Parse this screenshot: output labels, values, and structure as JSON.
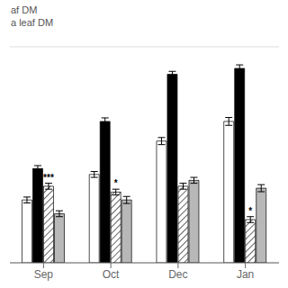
{
  "chart_data": {
    "type": "bar",
    "categories": [
      "Sep",
      "Oct",
      "Dec",
      "Jan"
    ],
    "series": [
      {
        "color": "#ffffff",
        "values": [
          3.2,
          4.5,
          6.2,
          7.2
        ],
        "errors": [
          0.15,
          0.15,
          0.18,
          0.2
        ]
      },
      {
        "color": "#000000",
        "values": [
          4.8,
          7.2,
          9.6,
          9.9
        ],
        "errors": [
          0.15,
          0.18,
          0.15,
          0.18
        ]
      },
      {
        "color": "#ffffff",
        "values": [
          3.9,
          3.6,
          3.9,
          2.2
        ],
        "errors": [
          0.15,
          0.15,
          0.15,
          0.15
        ]
      },
      {
        "color": "#b8b8b8",
        "values": [
          2.5,
          3.2,
          4.2,
          3.8
        ],
        "errors": [
          0.15,
          0.18,
          0.15,
          0.18
        ]
      }
    ],
    "annotations": [
      {
        "text": "af DM"
      },
      {
        "text": "a leaf DM"
      },
      {
        "text": "***",
        "category": "Sep",
        "series": 2
      },
      {
        "text": "*",
        "category": "Oct",
        "series": 2
      },
      {
        "text": "*",
        "category": "Jan",
        "series": 2
      }
    ],
    "ylim": [
      0,
      11
    ],
    "yticks": [
      0,
      2.2,
      4.4,
      6.6,
      8.8,
      11
    ],
    "grid": true,
    "tick_labels": "x"
  }
}
